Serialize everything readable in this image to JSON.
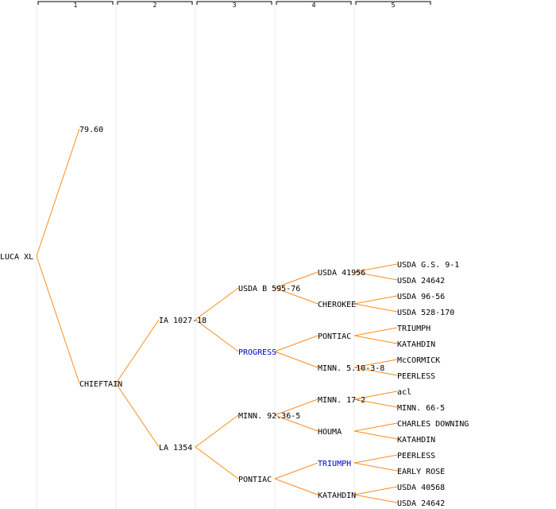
{
  "generations": [
    "1",
    "2",
    "3",
    "4",
    "5"
  ],
  "colors": {
    "edge": "#ff8c1a",
    "text": "#000000",
    "highlight": "#0000cc",
    "column_line": "#eeeeee",
    "header_line": "#000000"
  },
  "root": {
    "label": "LUCA XL",
    "children": [
      {
        "label": "79.60"
      },
      {
        "label": "CHIEFTAIN",
        "children": [
          {
            "label": "IA 1027-18",
            "children": [
              {
                "label": "USDA B 595-76",
                "children": [
                  {
                    "label": "USDA 41956",
                    "children": [
                      {
                        "label": "USDA G.S. 9-1"
                      },
                      {
                        "label": "USDA 24642"
                      }
                    ]
                  },
                  {
                    "label": "CHEROKEE",
                    "children": [
                      {
                        "label": "USDA 96-56"
                      },
                      {
                        "label": "USDA 528-170"
                      }
                    ]
                  }
                ]
              },
              {
                "label": "PROGRESS",
                "highlight": true,
                "children": [
                  {
                    "label": "PONTIAC",
                    "children": [
                      {
                        "label": "TRIUMPH"
                      },
                      {
                        "label": "KATAHDIN"
                      }
                    ]
                  },
                  {
                    "label": "MINN. 5.10-3-8",
                    "children": [
                      {
                        "label": "McCORMICK"
                      },
                      {
                        "label": "PEERLESS"
                      }
                    ]
                  }
                ]
              }
            ]
          },
          {
            "label": "LA 1354",
            "children": [
              {
                "label": "MINN. 92.36-5",
                "children": [
                  {
                    "label": "MINN. 17-2",
                    "children": [
                      {
                        "label": "acl"
                      },
                      {
                        "label": "MINN. 66-5"
                      }
                    ]
                  },
                  {
                    "label": "HOUMA",
                    "children": [
                      {
                        "label": "CHARLES DOWNING"
                      },
                      {
                        "label": "KATAHDIN"
                      }
                    ]
                  }
                ]
              },
              {
                "label": "PONTIAC",
                "children": [
                  {
                    "label": "TRIUMPH",
                    "highlight": true,
                    "children": [
                      {
                        "label": "PEERLESS"
                      },
                      {
                        "label": "EARLY ROSE"
                      }
                    ]
                  },
                  {
                    "label": "KATAHDIN",
                    "children": [
                      {
                        "label": "USDA 40568"
                      },
                      {
                        "label": "USDA 24642"
                      }
                    ]
                  }
                ]
              }
            ]
          }
        ]
      }
    ]
  }
}
